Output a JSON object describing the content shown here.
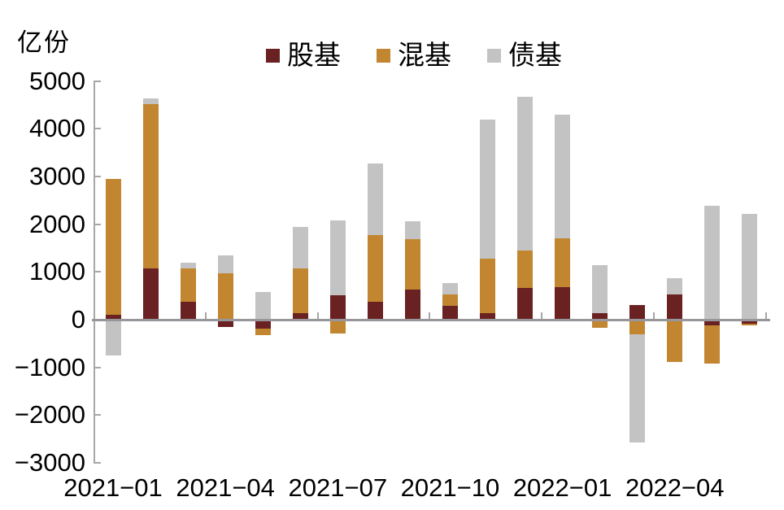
{
  "chart_data": {
    "type": "bar",
    "stacked": true,
    "title": "",
    "unit_label": "亿份",
    "categories": [
      "2021−01",
      "2021−02",
      "2021−03",
      "2021−04",
      "2021−05",
      "2021−06",
      "2021−07",
      "2021−08",
      "2021−09",
      "2021−10",
      "2021−11",
      "2021−12",
      "2022−01",
      "2022−02",
      "2022−03",
      "2022−04",
      "2022−05",
      "2022−06"
    ],
    "visible_x_tick_labels": [
      "2021−01",
      "2021−04",
      "2021−07",
      "2021−10",
      "2022−01",
      "2022−04"
    ],
    "series": [
      {
        "name": "股基",
        "color": "#6A2121",
        "values": [
          110,
          1070,
          370,
          -150,
          -190,
          140,
          510,
          370,
          625,
          285,
          130,
          665,
          690,
          140,
          310,
          525,
          -115,
          -85
        ]
      },
      {
        "name": "混基",
        "color": "#C28631",
        "values": [
          2840,
          3440,
          700,
          970,
          -140,
          930,
          -285,
          1410,
          1055,
          240,
          1150,
          790,
          1020,
          -170,
          -315,
          -885,
          -800,
          -40
        ]
      },
      {
        "name": "债基",
        "color": "#C3C3C4",
        "values": [
          -750,
          130,
          130,
          370,
          580,
          880,
          1570,
          1490,
          390,
          235,
          2920,
          3220,
          2580,
          1000,
          -2260,
          350,
          2390,
          2210
        ]
      }
    ],
    "ylim": [
      -3000,
      5000
    ],
    "y_ticks": [
      5000,
      4000,
      3000,
      2000,
      1000,
      0,
      -1000,
      -2000,
      -3000
    ],
    "y_tick_labels": [
      "5000",
      "4000",
      "3000",
      "2000",
      "1000",
      "0",
      "−1000",
      "−2000",
      "−3000"
    ],
    "legend_position": "top-center",
    "grid": false,
    "background": "#FFFFFF",
    "axis_color": "#A6A6A6",
    "zero_line_color": "#97979B",
    "text_color": "#000000"
  }
}
